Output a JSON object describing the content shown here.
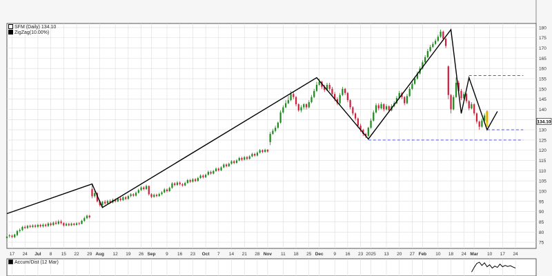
{
  "legend": {
    "price": "SFM (Daily) 134.10",
    "zigzag": "ZigZag(10.00%)",
    "accum": "Accum/Dist (12 Mar)"
  },
  "colors": {
    "up": "#1f8a1f",
    "down": "#d01f3c",
    "zigzag": "#000000",
    "support": "#3a3ae6",
    "last": "#e8c200",
    "grid": "#dcdcdc",
    "bg": "#f6f6f6"
  },
  "chart_data": {
    "type": "candlestick",
    "ylim": [
      72,
      182
    ],
    "y_ticks": [
      75,
      80,
      85,
      90,
      95,
      100,
      105,
      110,
      115,
      120,
      125,
      130,
      135,
      140,
      145,
      150,
      155,
      160,
      165,
      170,
      175,
      180
    ],
    "last_price": 134.1,
    "x_ticks": [
      {
        "label": "17",
        "i": 2
      },
      {
        "label": "24",
        "i": 7
      },
      {
        "label": "Jul",
        "i": 12
      },
      {
        "label": "8",
        "i": 17
      },
      {
        "label": "15",
        "i": 22
      },
      {
        "label": "22",
        "i": 27
      },
      {
        "label": "29",
        "i": 32
      },
      {
        "label": "Aug",
        "i": 36
      },
      {
        "label": "12",
        "i": 42
      },
      {
        "label": "19",
        "i": 47
      },
      {
        "label": "26",
        "i": 52
      },
      {
        "label": "Sep",
        "i": 56
      },
      {
        "label": "9",
        "i": 62
      },
      {
        "label": "16",
        "i": 67
      },
      {
        "label": "23",
        "i": 72
      },
      {
        "label": "Oct",
        "i": 77
      },
      {
        "label": "7",
        "i": 82
      },
      {
        "label": "14",
        "i": 87
      },
      {
        "label": "21",
        "i": 92
      },
      {
        "label": "28",
        "i": 97
      },
      {
        "label": "Nov",
        "i": 101
      },
      {
        "label": "11",
        "i": 107
      },
      {
        "label": "18",
        "i": 112
      },
      {
        "label": "25",
        "i": 117
      },
      {
        "label": "Dec",
        "i": 121
      },
      {
        "label": "9",
        "i": 127
      },
      {
        "label": "16",
        "i": 132
      },
      {
        "label": "23",
        "i": 137
      },
      {
        "label": "2025",
        "i": 141
      },
      {
        "label": "13",
        "i": 147
      },
      {
        "label": "20",
        "i": 152
      },
      {
        "label": "27",
        "i": 157
      },
      {
        "label": "Feb",
        "i": 161
      },
      {
        "label": "10",
        "i": 167
      },
      {
        "label": "18",
        "i": 172
      },
      {
        "label": "24",
        "i": 177
      },
      {
        "label": "Mar",
        "i": 181
      },
      {
        "label": "10",
        "i": 187
      },
      {
        "label": "17",
        "i": 192
      },
      {
        "label": "24",
        "i": 197
      }
    ],
    "x_range": [
      0,
      205
    ],
    "zigzag": [
      {
        "i": 0,
        "v": 89
      },
      {
        "i": 33,
        "v": 103.5
      },
      {
        "i": 37,
        "v": 92
      },
      {
        "i": 120,
        "v": 155.5
      },
      {
        "i": 140,
        "v": 125.5
      },
      {
        "i": 172,
        "v": 179
      },
      {
        "i": 176,
        "v": 138
      },
      {
        "i": 179,
        "v": 155.5
      },
      {
        "i": 186,
        "v": 130
      },
      {
        "i": 190,
        "v": 139
      }
    ],
    "support_lines": [
      {
        "value": 156.5,
        "from": 179,
        "to": 200
      },
      {
        "value": 130.0,
        "from": 186,
        "to": 200
      },
      {
        "value": 125.0,
        "from": 140,
        "to": 200
      }
    ],
    "candles": [
      [
        77.0,
        77.8,
        76.5,
        78.2
      ],
      [
        78.0,
        78.4,
        77.2,
        79.0
      ],
      [
        78.2,
        77.6,
        77.0,
        78.8
      ],
      [
        77.5,
        78.8,
        77.0,
        79.2
      ],
      [
        78.5,
        80.5,
        78.0,
        81.0
      ],
      [
        80.5,
        81.0,
        79.8,
        81.8
      ],
      [
        81.0,
        82.5,
        80.5,
        83.0
      ],
      [
        82.5,
        82.0,
        81.5,
        83.2
      ],
      [
        82.0,
        83.0,
        81.5,
        83.5
      ],
      [
        83.0,
        82.5,
        82.0,
        83.6
      ],
      [
        82.5,
        83.2,
        82.0,
        83.8
      ],
      [
        83.2,
        82.6,
        82.0,
        83.8
      ],
      [
        82.6,
        83.5,
        82.0,
        84.0
      ],
      [
        83.5,
        82.8,
        82.2,
        84.0
      ],
      [
        82.8,
        83.6,
        82.2,
        84.2
      ],
      [
        83.6,
        83.0,
        82.4,
        84.2
      ],
      [
        83.0,
        84.2,
        82.5,
        84.8
      ],
      [
        84.2,
        83.4,
        82.8,
        84.8
      ],
      [
        83.4,
        84.6,
        83.0,
        85.2
      ],
      [
        84.6,
        84.0,
        83.5,
        85.6
      ],
      [
        84.0,
        85.2,
        83.6,
        86.0
      ],
      [
        85.2,
        84.4,
        83.8,
        86.0
      ],
      [
        84.4,
        83.2,
        82.6,
        84.8
      ],
      [
        83.2,
        84.0,
        82.8,
        84.6
      ],
      [
        84.0,
        83.3,
        82.8,
        84.5
      ],
      [
        83.3,
        84.1,
        82.9,
        84.6
      ],
      [
        84.1,
        83.5,
        83.0,
        84.5
      ],
      [
        83.5,
        84.3,
        83.1,
        84.8
      ],
      [
        84.3,
        84.0,
        83.4,
        84.8
      ],
      [
        84.0,
        85.5,
        83.8,
        86.0
      ],
      [
        85.5,
        86.8,
        85.0,
        87.5
      ],
      [
        86.8,
        88.0,
        86.2,
        88.5
      ],
      [
        88.0,
        87.2,
        86.6,
        88.4
      ],
      [
        101.0,
        97.5,
        96.5,
        103.5
      ],
      [
        97.5,
        99.0,
        96.8,
        100.0
      ],
      [
        99.0,
        95.0,
        94.5,
        99.5
      ],
      [
        95.0,
        93.2,
        92.5,
        95.5
      ],
      [
        93.2,
        94.8,
        92.0,
        95.2
      ],
      [
        94.8,
        94.0,
        93.4,
        95.6
      ],
      [
        94.0,
        95.2,
        93.6,
        95.8
      ],
      [
        95.2,
        94.4,
        93.8,
        96.0
      ],
      [
        94.4,
        95.8,
        94.0,
        96.4
      ],
      [
        95.8,
        95.0,
        94.4,
        96.4
      ],
      [
        95.0,
        96.4,
        94.6,
        97.0
      ],
      [
        96.4,
        95.6,
        95.0,
        97.0
      ],
      [
        95.6,
        97.0,
        95.2,
        97.5
      ],
      [
        97.0,
        96.2,
        95.6,
        97.6
      ],
      [
        96.2,
        97.6,
        95.8,
        98.2
      ],
      [
        97.6,
        98.5,
        97.0,
        99.0
      ],
      [
        98.5,
        97.8,
        97.2,
        99.0
      ],
      [
        97.8,
        99.2,
        97.4,
        99.8
      ],
      [
        99.2,
        100.5,
        98.8,
        101.2
      ],
      [
        100.5,
        101.8,
        100.0,
        102.5
      ],
      [
        101.8,
        101.0,
        100.4,
        102.4
      ],
      [
        101.0,
        102.5,
        100.6,
        103.2
      ],
      [
        102.5,
        98.5,
        97.8,
        102.8
      ],
      [
        98.5,
        97.2,
        96.6,
        99.0
      ],
      [
        97.2,
        98.2,
        96.8,
        98.8
      ],
      [
        98.2,
        97.6,
        97.0,
        98.8
      ],
      [
        97.6,
        98.6,
        97.2,
        99.2
      ],
      [
        98.6,
        99.4,
        98.0,
        100.0
      ],
      [
        99.4,
        100.8,
        99.0,
        101.5
      ],
      [
        100.8,
        100.0,
        99.4,
        101.4
      ],
      [
        100.0,
        101.6,
        99.6,
        102.2
      ],
      [
        101.6,
        103.8,
        101.2,
        104.4
      ],
      [
        103.8,
        103.0,
        102.4,
        104.4
      ],
      [
        103.0,
        104.2,
        102.6,
        104.8
      ],
      [
        104.2,
        103.4,
        102.8,
        104.8
      ],
      [
        103.4,
        102.8,
        102.2,
        104.0
      ],
      [
        102.8,
        104.0,
        102.4,
        104.6
      ],
      [
        104.0,
        105.4,
        103.6,
        106.0
      ],
      [
        105.4,
        104.6,
        104.0,
        106.0
      ],
      [
        104.6,
        105.8,
        104.2,
        106.4
      ],
      [
        105.8,
        105.0,
        104.4,
        106.4
      ],
      [
        105.0,
        106.4,
        104.6,
        107.0
      ],
      [
        106.4,
        107.6,
        106.0,
        108.2
      ],
      [
        107.6,
        106.8,
        106.2,
        108.2
      ],
      [
        106.8,
        108.0,
        106.4,
        108.6
      ],
      [
        108.0,
        109.4,
        107.6,
        110.0
      ],
      [
        109.4,
        108.6,
        108.0,
        110.0
      ],
      [
        108.6,
        109.8,
        108.2,
        110.4
      ],
      [
        109.8,
        111.0,
        109.4,
        111.6
      ],
      [
        111.0,
        110.2,
        109.6,
        111.6
      ],
      [
        110.2,
        111.6,
        109.8,
        112.2
      ],
      [
        111.6,
        113.0,
        111.2,
        113.6
      ],
      [
        113.0,
        112.2,
        111.6,
        113.6
      ],
      [
        112.2,
        113.4,
        111.8,
        114.0
      ],
      [
        113.4,
        114.6,
        113.0,
        115.2
      ],
      [
        114.6,
        113.8,
        113.2,
        115.2
      ],
      [
        113.8,
        115.0,
        113.4,
        115.6
      ],
      [
        115.0,
        116.2,
        114.6,
        116.8
      ],
      [
        116.2,
        115.4,
        114.8,
        116.8
      ],
      [
        115.4,
        116.6,
        115.0,
        117.2
      ],
      [
        116.6,
        115.8,
        115.2,
        117.2
      ],
      [
        115.8,
        117.0,
        115.4,
        117.6
      ],
      [
        117.0,
        118.2,
        116.6,
        118.8
      ],
      [
        118.2,
        117.4,
        116.8,
        118.8
      ],
      [
        117.4,
        118.8,
        117.0,
        119.4
      ],
      [
        118.8,
        120.0,
        118.4,
        120.6
      ],
      [
        120.0,
        119.2,
        118.6,
        120.4
      ],
      [
        119.2,
        120.2,
        118.8,
        120.8
      ],
      [
        120.2,
        119.4,
        118.8,
        120.6
      ],
      [
        124.0,
        128.0,
        122.5,
        129.0
      ],
      [
        128.0,
        129.5,
        127.5,
        130.5
      ],
      [
        129.5,
        131.0,
        128.8,
        132.0
      ],
      [
        131.0,
        133.5,
        130.5,
        134.0
      ],
      [
        133.5,
        138.5,
        133.0,
        139.5
      ],
      [
        138.5,
        141.0,
        138.0,
        142.0
      ],
      [
        141.0,
        143.0,
        140.5,
        144.5
      ],
      [
        143.0,
        144.5,
        142.5,
        146.5
      ],
      [
        144.5,
        147.5,
        144.0,
        149.0
      ],
      [
        147.5,
        146.0,
        145.0,
        148.5
      ],
      [
        146.0,
        142.5,
        141.5,
        146.5
      ],
      [
        142.5,
        139.5,
        138.8,
        143.0
      ],
      [
        139.5,
        141.0,
        138.5,
        142.0
      ],
      [
        141.0,
        142.5,
        140.0,
        143.0
      ],
      [
        142.5,
        141.0,
        140.0,
        143.0
      ],
      [
        141.0,
        143.5,
        140.5,
        144.5
      ],
      [
        143.5,
        146.0,
        143.0,
        147.0
      ],
      [
        146.0,
        149.0,
        145.5,
        150.0
      ],
      [
        149.0,
        152.0,
        148.5,
        153.5
      ],
      [
        152.0,
        153.5,
        151.5,
        155.0
      ],
      [
        153.5,
        151.0,
        150.0,
        154.0
      ],
      [
        151.0,
        149.5,
        148.5,
        152.0
      ],
      [
        149.5,
        152.0,
        149.0,
        153.0
      ],
      [
        152.0,
        150.0,
        149.0,
        153.0
      ],
      [
        150.0,
        147.5,
        146.5,
        151.0
      ],
      [
        147.5,
        145.0,
        144.0,
        148.5
      ],
      [
        145.0,
        143.0,
        142.0,
        146.0
      ],
      [
        143.0,
        147.0,
        142.5,
        148.0
      ],
      [
        147.0,
        150.0,
        146.5,
        151.0
      ],
      [
        150.0,
        148.0,
        147.0,
        150.5
      ],
      [
        148.0,
        144.5,
        143.5,
        148.5
      ],
      [
        144.5,
        141.0,
        140.0,
        145.0
      ],
      [
        141.0,
        138.0,
        137.0,
        141.5
      ],
      [
        138.0,
        135.5,
        134.5,
        138.5
      ],
      [
        135.5,
        132.0,
        131.0,
        136.0
      ],
      [
        132.0,
        130.0,
        129.0,
        133.0
      ],
      [
        130.0,
        128.0,
        127.0,
        130.5
      ],
      [
        128.0,
        127.0,
        126.0,
        128.5
      ],
      [
        127.0,
        131.0,
        126.5,
        131.5
      ],
      [
        131.0,
        134.5,
        130.5,
        135.5
      ],
      [
        134.5,
        138.5,
        134.0,
        139.5
      ],
      [
        138.5,
        142.0,
        138.0,
        143.0
      ],
      [
        142.0,
        140.5,
        139.5,
        143.0
      ],
      [
        140.5,
        142.5,
        140.0,
        143.5
      ],
      [
        142.5,
        140.0,
        139.0,
        143.0
      ],
      [
        140.0,
        141.5,
        139.5,
        142.5
      ],
      [
        141.5,
        139.5,
        138.5,
        142.0
      ],
      [
        139.5,
        141.5,
        139.0,
        142.5
      ],
      [
        141.5,
        143.0,
        141.0,
        144.0
      ],
      [
        143.0,
        145.5,
        142.5,
        146.5
      ],
      [
        145.5,
        148.0,
        145.0,
        149.0
      ],
      [
        148.0,
        146.0,
        145.0,
        148.5
      ],
      [
        146.0,
        143.0,
        142.0,
        146.5
      ],
      [
        143.0,
        146.5,
        142.5,
        147.5
      ],
      [
        146.5,
        150.0,
        146.0,
        151.0
      ],
      [
        150.0,
        152.5,
        149.5,
        153.5
      ],
      [
        152.5,
        155.0,
        152.0,
        156.0
      ],
      [
        155.0,
        157.5,
        154.5,
        158.5
      ],
      [
        157.5,
        160.0,
        157.0,
        161.0
      ],
      [
        160.0,
        163.0,
        159.5,
        164.0
      ],
      [
        163.0,
        165.5,
        162.5,
        166.5
      ],
      [
        165.5,
        168.5,
        165.0,
        169.5
      ],
      [
        168.5,
        170.5,
        168.0,
        171.5
      ],
      [
        170.5,
        172.0,
        170.0,
        173.0
      ],
      [
        172.0,
        173.5,
        171.5,
        174.5
      ],
      [
        173.5,
        175.5,
        173.0,
        176.5
      ],
      [
        175.5,
        178.0,
        175.0,
        179.0
      ],
      [
        178.0,
        174.5,
        173.5,
        178.5
      ],
      [
        174.5,
        171.0,
        170.0,
        175.0
      ],
      [
        161.0,
        147.0,
        145.0,
        161.5
      ],
      [
        147.0,
        140.0,
        138.0,
        147.5
      ],
      [
        140.0,
        146.0,
        139.5,
        147.0
      ],
      [
        146.0,
        153.0,
        145.5,
        155.5
      ],
      [
        153.0,
        149.0,
        148.0,
        154.0
      ],
      [
        149.0,
        145.5,
        144.5,
        150.0
      ],
      [
        145.5,
        147.5,
        145.0,
        148.5
      ],
      [
        147.5,
        144.0,
        143.0,
        148.0
      ],
      [
        144.0,
        140.5,
        139.5,
        144.5
      ],
      [
        140.5,
        142.5,
        140.0,
        143.5
      ],
      [
        142.5,
        138.0,
        137.0,
        143.0
      ],
      [
        138.0,
        134.0,
        133.0,
        138.5
      ],
      [
        134.0,
        131.5,
        130.0,
        134.5
      ],
      [
        131.5,
        134.5,
        131.0,
        135.5
      ],
      [
        134.5,
        137.0,
        134.0,
        138.0
      ],
      [
        139.0,
        134.1,
        133.5,
        139.5
      ]
    ],
    "accum_dist": [
      {
        "i": 180,
        "v": 0.2
      },
      {
        "i": 181,
        "v": 0.55
      },
      {
        "i": 182,
        "v": 0.85
      },
      {
        "i": 183,
        "v": 0.95
      },
      {
        "i": 184,
        "v": 0.7
      },
      {
        "i": 185,
        "v": 0.9
      },
      {
        "i": 186,
        "v": 0.6
      },
      {
        "i": 187,
        "v": 0.75
      },
      {
        "i": 188,
        "v": 0.5
      },
      {
        "i": 189,
        "v": 0.65
      },
      {
        "i": 190,
        "v": 0.55
      },
      {
        "i": 191,
        "v": 0.8
      },
      {
        "i": 192,
        "v": 0.6
      },
      {
        "i": 193,
        "v": 0.7
      },
      {
        "i": 194,
        "v": 0.62
      },
      {
        "i": 195,
        "v": 0.68
      },
      {
        "i": 196,
        "v": 0.58
      },
      {
        "i": 197,
        "v": 0.5
      }
    ]
  }
}
